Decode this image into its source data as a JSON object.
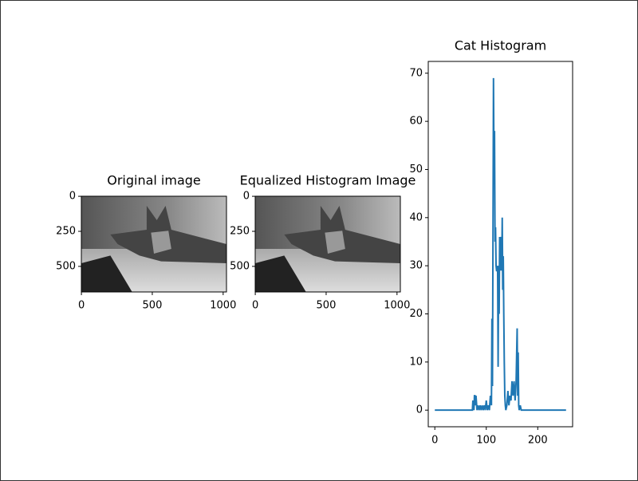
{
  "chart_data": [
    {
      "type": "image",
      "title": "Original image",
      "xlim": [
        -0.5,
        1023.5
      ],
      "ylim": [
        682.5,
        -0.5
      ],
      "xticks": [
        0,
        500,
        1000
      ],
      "yticks": [
        0,
        250,
        500
      ]
    },
    {
      "type": "image",
      "title": "Equalized Histogram Image",
      "xlim": [
        -0.5,
        1023.5
      ],
      "ylim": [
        682.5,
        -0.5
      ],
      "xticks": [
        0,
        500,
        1000
      ],
      "yticks": [
        0,
        250,
        500
      ]
    },
    {
      "type": "line",
      "title": "Cat Histogram",
      "xlim": [
        -12.75,
        267.75
      ],
      "ylim": [
        -3.45,
        72.45
      ],
      "xticks": [
        0,
        100,
        200
      ],
      "yticks": [
        0,
        10,
        20,
        30,
        40,
        50,
        60,
        70
      ],
      "x": [
        0,
        73,
        74,
        75,
        76,
        77,
        78,
        79,
        80,
        82,
        84,
        86,
        88,
        90,
        92,
        94,
        96,
        98,
        100,
        102,
        104,
        106,
        108,
        110,
        111,
        112,
        113,
        114,
        115,
        116,
        117,
        118,
        119,
        120,
        121,
        122,
        123,
        124,
        125,
        126,
        127,
        128,
        129,
        130,
        131,
        132,
        133,
        134,
        135,
        136,
        137,
        138,
        140,
        142,
        144,
        146,
        148,
        150,
        152,
        154,
        156,
        158,
        160,
        161,
        162,
        163,
        164,
        166,
        168,
        255
      ],
      "values": [
        0,
        0,
        2,
        1,
        0,
        3,
        3,
        1,
        3,
        0,
        1,
        0,
        1,
        0,
        1,
        0,
        1,
        0,
        2,
        0,
        1,
        0,
        3,
        1,
        19,
        5,
        35,
        69,
        50,
        58,
        35,
        38,
        30,
        29,
        29,
        30,
        9,
        30,
        20,
        36,
        29,
        35,
        36,
        29,
        40,
        25,
        32,
        20,
        10,
        3,
        1,
        0,
        1,
        4,
        1,
        3,
        2,
        6,
        3,
        6,
        2,
        6,
        17,
        3,
        12,
        1,
        0,
        1,
        0,
        0
      ],
      "color": "#1f77b4"
    }
  ]
}
